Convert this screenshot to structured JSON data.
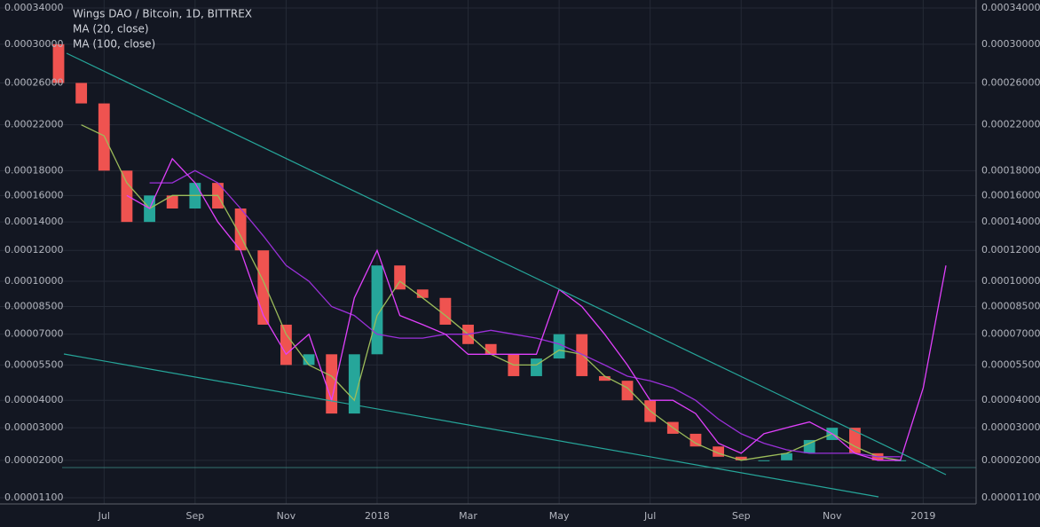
{
  "chart_data": {
    "type": "candlestick",
    "title": "Wings DAO / Bitcoin, 1D, BITTREX",
    "categories": [
      null,
      null,
      "Jul",
      null,
      null,
      null,
      "Sep",
      null,
      null,
      null,
      "Nov",
      null,
      null,
      null,
      "2018",
      null,
      null,
      null,
      "Mar",
      null,
      null,
      null,
      "May",
      null,
      null,
      null,
      "Jul",
      null,
      null,
      null,
      "Sep",
      null,
      null,
      null,
      "Nov",
      null,
      null,
      null,
      "2019",
      null
    ],
    "candles": {
      "up_color": "#26a69a",
      "down_color": "#ef5350",
      "open": [
        0.0003,
        0.00026,
        0.00024,
        0.00018,
        0.00014,
        0.00016,
        0.00015,
        0.00017,
        0.00015,
        0.00012,
        7.5e-05,
        5.5e-05,
        6e-05,
        3.5e-05,
        6e-05,
        0.00011,
        9.5e-05,
        9e-05,
        7.5e-05,
        6.5e-05,
        6e-05,
        5e-05,
        5.8e-05,
        7e-05,
        5e-05,
        4.8e-05,
        4e-05,
        3.2e-05,
        2.8e-05,
        2.4e-05,
        2.1e-05,
        2e-05,
        2e-05,
        2.2e-05,
        2.6e-05,
        3e-05,
        2.2e-05,
        2e-05,
        null,
        null
      ],
      "close": [
        0.00026,
        0.00024,
        0.00018,
        0.00014,
        0.00016,
        0.00015,
        0.00017,
        0.00015,
        0.00012,
        7.5e-05,
        5.5e-05,
        6e-05,
        3.5e-05,
        6e-05,
        0.00011,
        9.5e-05,
        9e-05,
        7.5e-05,
        6.5e-05,
        6e-05,
        5e-05,
        5.8e-05,
        7e-05,
        5e-05,
        4.8e-05,
        4e-05,
        3.2e-05,
        2.8e-05,
        2.4e-05,
        2.1e-05,
        2e-05,
        2e-05,
        2.2e-05,
        2.6e-05,
        3e-05,
        2.2e-05,
        2e-05,
        2e-05,
        null,
        null
      ]
    },
    "series": [
      {
        "name": "MA (20, close)",
        "color": "#9cbc5a",
        "values": [
          null,
          0.00022,
          0.00021,
          0.00017,
          0.00015,
          0.00016,
          0.00016,
          0.00016,
          0.00013,
          0.0001,
          7e-05,
          5.5e-05,
          5e-05,
          4e-05,
          8e-05,
          0.0001,
          9e-05,
          8e-05,
          7e-05,
          6e-05,
          5.5e-05,
          5.5e-05,
          6.2e-05,
          6e-05,
          5e-05,
          4.5e-05,
          3.6e-05,
          3e-05,
          2.5e-05,
          2.2e-05,
          2e-05,
          2.1e-05,
          2.2e-05,
          2.5e-05,
          2.8e-05,
          2.4e-05,
          2.1e-05,
          2e-05,
          null,
          null
        ]
      },
      {
        "name": "MA (100, close)",
        "color": "#9b30d9",
        "values": [
          null,
          null,
          null,
          null,
          0.00017,
          0.00017,
          0.00018,
          0.00017,
          0.00015,
          0.00013,
          0.00011,
          0.0001,
          8.5e-05,
          8e-05,
          7e-05,
          6.8e-05,
          6.8e-05,
          7e-05,
          7e-05,
          7.2e-05,
          7e-05,
          6.8e-05,
          6.5e-05,
          6e-05,
          5.5e-05,
          5e-05,
          4.8e-05,
          4.5e-05,
          4e-05,
          3.3e-05,
          2.8e-05,
          2.5e-05,
          2.3e-05,
          2.2e-05,
          2.2e-05,
          2.2e-05,
          2.1e-05,
          2.1e-05,
          null,
          null
        ]
      },
      {
        "color": "#e040fb",
        "values": [
          null,
          null,
          null,
          0.00016,
          0.00015,
          0.00019,
          0.00017,
          0.00014,
          0.00012,
          8e-05,
          6e-05,
          7e-05,
          4e-05,
          9e-05,
          0.00012,
          8e-05,
          7.5e-05,
          7e-05,
          6e-05,
          6e-05,
          6e-05,
          6e-05,
          9.5e-05,
          8.5e-05,
          7e-05,
          5.5e-05,
          4e-05,
          4e-05,
          3.5e-05,
          2.5e-05,
          2.2e-05,
          2.8e-05,
          3e-05,
          3.2e-05,
          2.8e-05,
          2.2e-05,
          2e-05,
          2e-05,
          4.5e-05,
          0.00011
        ]
      }
    ],
    "yscale": "sqrt",
    "ylim": [
      1.1e-05,
      0.00034
    ],
    "yticks": [
      {
        "value": 1.1e-05,
        "label": "0.00001100"
      },
      {
        "value": 2e-05,
        "label": "0.00002000"
      },
      {
        "value": 3e-05,
        "label": "0.00003000"
      },
      {
        "value": 4e-05,
        "label": "0.00004000"
      },
      {
        "value": 5.5e-05,
        "label": "0.00005500"
      },
      {
        "value": 7e-05,
        "label": "0.00007000"
      },
      {
        "value": 8.5e-05,
        "label": "0.00008500"
      },
      {
        "value": 0.0001,
        "label": "0.00010000"
      },
      {
        "value": 0.00012,
        "label": "0.00012000"
      },
      {
        "value": 0.00014,
        "label": "0.00014000"
      },
      {
        "value": 0.00016,
        "label": "0.00016000"
      },
      {
        "value": 0.00018,
        "label": "0.00018000"
      },
      {
        "value": 0.00022,
        "label": "0.00022000"
      },
      {
        "value": 0.00026,
        "label": "0.00026000"
      },
      {
        "value": 0.0003,
        "label": "0.00030000"
      },
      {
        "value": 0.00034,
        "label": "0.00034000"
      }
    ],
    "grid": true
  }
}
